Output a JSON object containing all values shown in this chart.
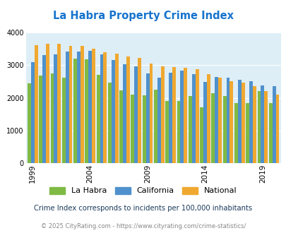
{
  "title": "La Habra Property Crime Index",
  "title_color": "#1874CD",
  "years": [
    1999,
    2000,
    2001,
    2002,
    2003,
    2004,
    2005,
    2006,
    2007,
    2008,
    2009,
    2010,
    2011,
    2012,
    2013,
    2014,
    2015,
    2016,
    2017,
    2018,
    2019,
    2020
  ],
  "la_habra": [
    2450,
    2680,
    2750,
    2620,
    3200,
    3190,
    2700,
    2470,
    2220,
    2090,
    2080,
    2260,
    1900,
    1900,
    2060,
    1720,
    2150,
    2060,
    1840,
    1830,
    2200,
    1830
  ],
  "california": [
    3100,
    3310,
    3340,
    3430,
    3430,
    3440,
    3330,
    3160,
    3030,
    2960,
    2740,
    2620,
    2760,
    2830,
    2720,
    2480,
    2630,
    2620,
    2560,
    2510,
    2380,
    2360
  ],
  "national": [
    3620,
    3660,
    3660,
    3600,
    3600,
    3510,
    3390,
    3350,
    3270,
    3230,
    3050,
    2970,
    2940,
    2920,
    2870,
    2730,
    2610,
    2510,
    2470,
    2360,
    2210,
    2090
  ],
  "la_habra_color": "#7fba44",
  "california_color": "#4f91cd",
  "national_color": "#f0a830",
  "background_color": "#deeef7",
  "ylim": [
    0,
    4000
  ],
  "yticks": [
    0,
    1000,
    2000,
    3000,
    4000
  ],
  "xlabel_ticks": [
    1999,
    2004,
    2009,
    2014,
    2019
  ],
  "subtitle": "Crime Index corresponds to incidents per 100,000 inhabitants",
  "footer": "© 2025 CityRating.com - https://www.cityrating.com/crime-statistics/",
  "subtitle_color": "#1a3a5c",
  "footer_color": "#888888"
}
